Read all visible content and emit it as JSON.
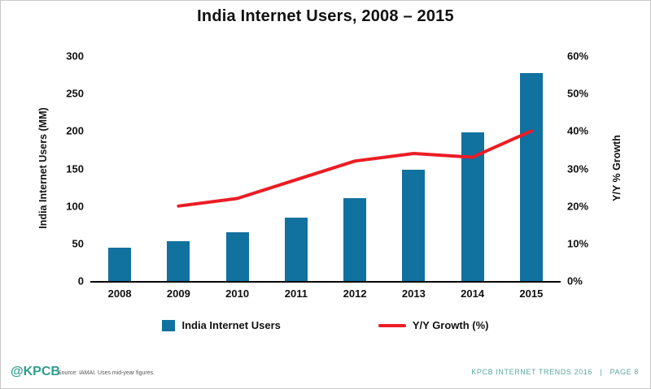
{
  "chart_data": {
    "type": "combo-bar-line",
    "title": "India Internet Users, 2008 – 2015",
    "categories": [
      "2008",
      "2009",
      "2010",
      "2011",
      "2012",
      "2013",
      "2014",
      "2015"
    ],
    "series": [
      {
        "name": "India Internet Users",
        "type": "bar",
        "axis": "left",
        "color": "#11719f",
        "values": [
          45,
          53,
          65,
          84,
          111,
          148,
          198,
          277
        ]
      },
      {
        "name": "Y/Y Growth (%)",
        "type": "line",
        "axis": "right",
        "color": "#ed1c24",
        "values": [
          null,
          20,
          22,
          27,
          32,
          34,
          33,
          40
        ]
      }
    ],
    "left_axis": {
      "label": "India Internet Users (MM)",
      "min": 0,
      "max": 300,
      "tick_labels": [
        "300",
        "250",
        "200",
        "150",
        "100",
        "50",
        "0"
      ]
    },
    "right_axis": {
      "label": "Y/Y % Growth",
      "min": 0,
      "max": 60,
      "tick_labels": [
        "60%",
        "50%",
        "40%",
        "30%",
        "20%",
        "10%",
        "0%"
      ]
    },
    "legend_position": "bottom",
    "grid": false
  },
  "footer": {
    "logo": "@KPCB",
    "source": "Source: IAMAI. Uses mid-year figures.",
    "right_text": "KPCB INTERNET TRENDS 2016   |   PAGE 8"
  },
  "colors": {
    "bar": "#11719f",
    "line": "#ed1c24",
    "brand_teal": "#2f9e8e",
    "footer_teal": "#5aa99f",
    "baseline": "#000000"
  }
}
